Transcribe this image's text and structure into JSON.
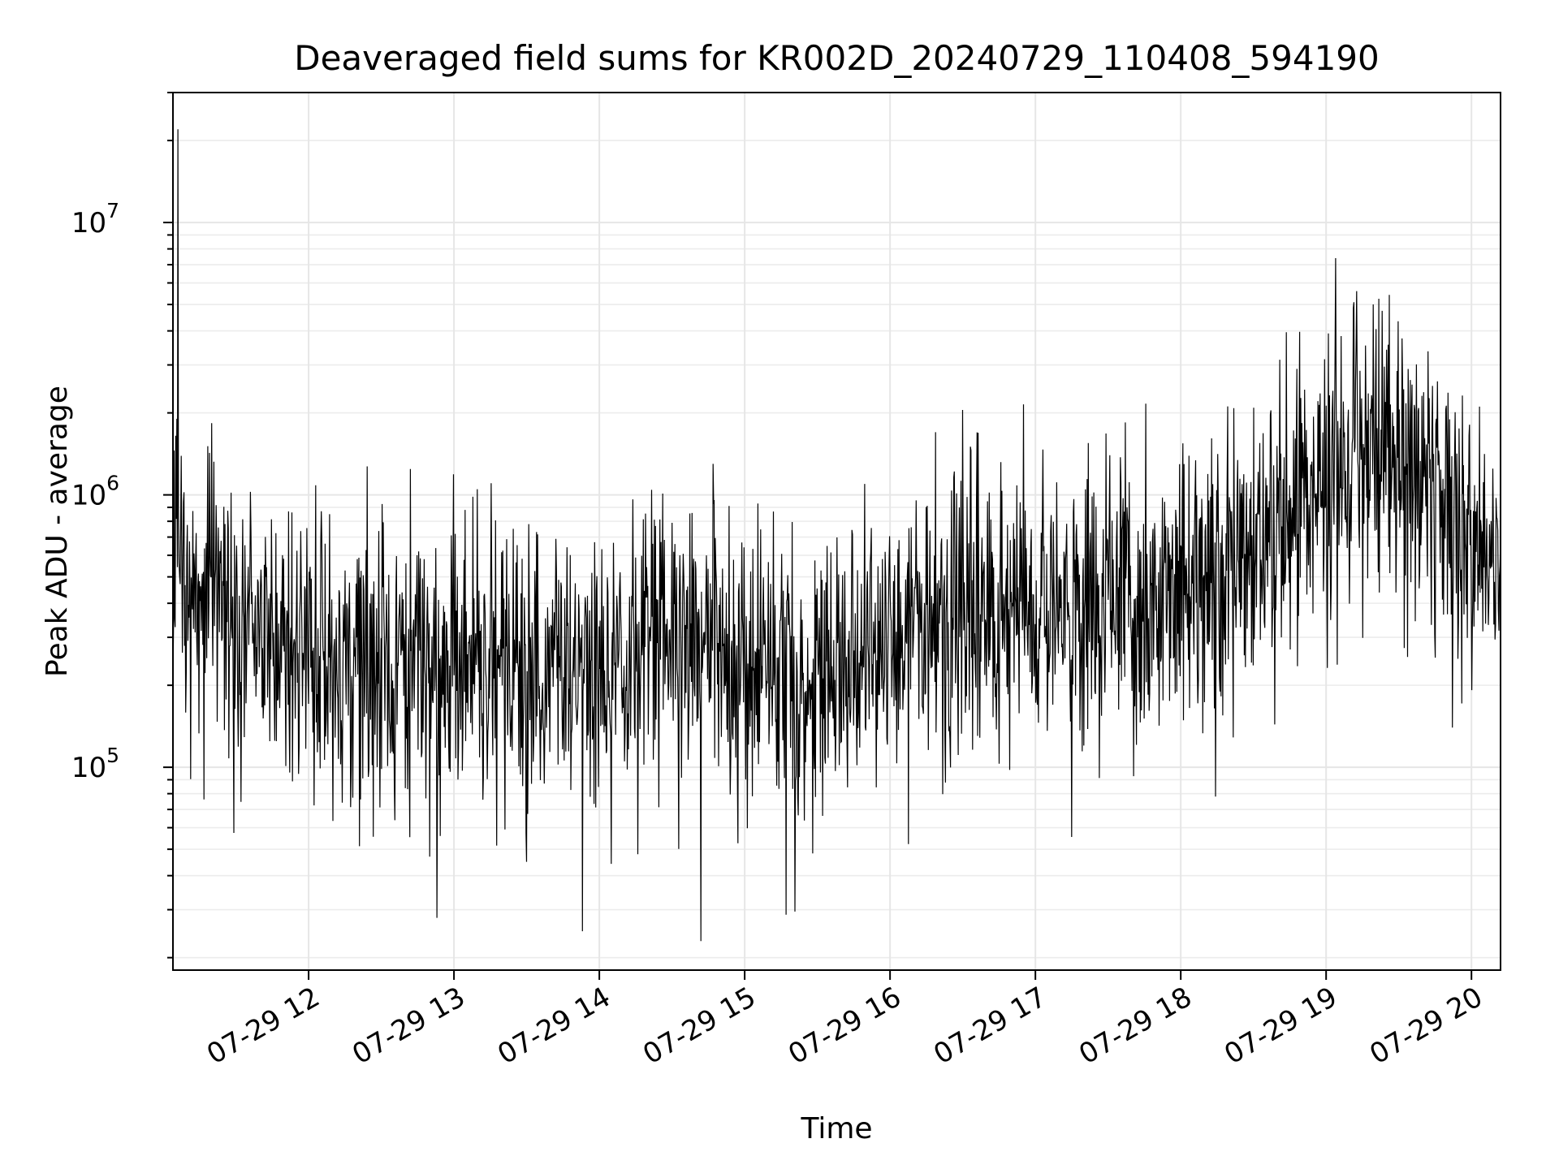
{
  "chart_data": {
    "type": "line",
    "title": "Deaveraged field sums for KR002D_20240729_110408_594190",
    "xlabel": "Time",
    "ylabel": "Peak ADU - average",
    "yscale": "log",
    "grid": true,
    "xlim": [
      "2024-07-29 11:04",
      "2024-07-29 20:12"
    ],
    "ylim": [
      18000,
      30000000
    ],
    "x_ticks": [
      {
        "value": "2024-07-29 12:00",
        "label": "07-29 12"
      },
      {
        "value": "2024-07-29 13:00",
        "label": "07-29 13"
      },
      {
        "value": "2024-07-29 14:00",
        "label": "07-29 14"
      },
      {
        "value": "2024-07-29 15:00",
        "label": "07-29 15"
      },
      {
        "value": "2024-07-29 16:00",
        "label": "07-29 16"
      },
      {
        "value": "2024-07-29 17:00",
        "label": "07-29 17"
      },
      {
        "value": "2024-07-29 18:00",
        "label": "07-29 18"
      },
      {
        "value": "2024-07-29 19:00",
        "label": "07-29 19"
      },
      {
        "value": "2024-07-29 20:00",
        "label": "07-29 20"
      }
    ],
    "y_ticks": [
      {
        "value": 100000,
        "base": "10",
        "exp": "5"
      },
      {
        "value": 1000000,
        "base": "10",
        "exp": "6"
      },
      {
        "value": 10000000,
        "base": "10",
        "exp": "7"
      }
    ],
    "line_color": "#000000",
    "trend": {
      "x": [
        "2024-07-29 11:04",
        "2024-07-29 11:10",
        "2024-07-29 11:30",
        "2024-07-29 12:00",
        "2024-07-29 12:30",
        "2024-07-29 13:00",
        "2024-07-29 13:30",
        "2024-07-29 14:00",
        "2024-07-29 14:30",
        "2024-07-29 15:00",
        "2024-07-29 15:20",
        "2024-07-29 15:35",
        "2024-07-29 16:00",
        "2024-07-29 16:30",
        "2024-07-29 17:00",
        "2024-07-29 17:30",
        "2024-07-29 17:45",
        "2024-07-29 18:00",
        "2024-07-29 18:30",
        "2024-07-29 19:00",
        "2024-07-29 19:15",
        "2024-07-29 19:30",
        "2024-07-29 19:50",
        "2024-07-29 20:00",
        "2024-07-29 20:12"
      ],
      "y": [
        700000,
        420000,
        380000,
        260000,
        240000,
        210000,
        220000,
        230000,
        290000,
        270000,
        230000,
        200000,
        300000,
        340000,
        380000,
        400000,
        330000,
        450000,
        650000,
        1200000,
        1500000,
        1300000,
        900000,
        550000,
        600000
      ]
    },
    "notable_points": [
      {
        "x": "2024-07-29 11:06",
        "y": 22000000
      },
      {
        "x": "2024-07-29 14:47",
        "y": 1300000
      },
      {
        "x": "2024-07-29 16:30",
        "y": 2050000
      },
      {
        "x": "2024-07-29 19:04",
        "y": 7400000
      },
      {
        "x": "2024-07-29 14:42",
        "y": 23000
      },
      {
        "x": "2024-07-29 13:53",
        "y": 25000
      },
      {
        "x": "2024-07-29 12:53",
        "y": 28000
      }
    ]
  }
}
